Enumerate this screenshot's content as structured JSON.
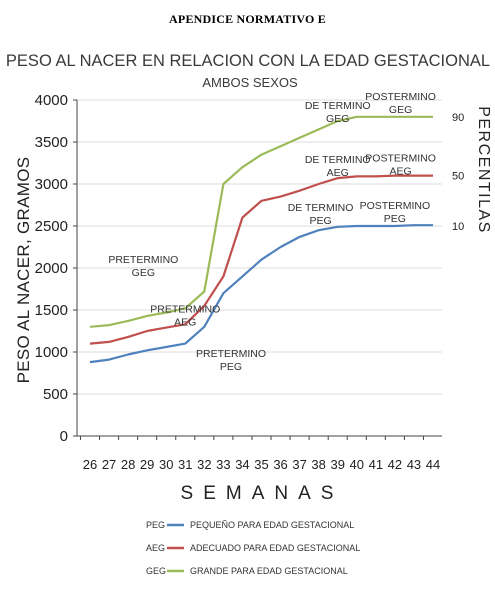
{
  "heading": "APENDICE NORMATIVO E",
  "chart_data": {
    "type": "line",
    "title": "PESO AL NACER EN RELACION CON LA EDAD GESTACIONAL",
    "subtitle": "AMBOS SEXOS",
    "xlabel": "SEMANAS",
    "ylabel": "PESO AL NACER, GRAMOS",
    "y2label": "PERCENTILAS",
    "x": [
      26,
      27,
      28,
      29,
      30,
      31,
      32,
      33,
      34,
      35,
      36,
      37,
      38,
      39,
      40,
      41,
      42,
      43,
      44
    ],
    "xticks": [
      "26",
      "27",
      "28",
      "29",
      "30",
      "31",
      "32",
      "33",
      "34",
      "35",
      "36",
      "37",
      "38",
      "39",
      "40",
      "41",
      "42",
      "43",
      "44"
    ],
    "ylim": [
      0,
      4000
    ],
    "yticks": [
      "0",
      "500",
      "1000",
      "1500",
      "2000",
      "2500",
      "3000",
      "3500",
      "4000"
    ],
    "grid": true,
    "series": [
      {
        "code": "GEG",
        "name": "GRANDE PARA EDAD GESTACIONAL",
        "color": "#9bbb59",
        "values": [
          1300,
          1320,
          1370,
          1430,
          1470,
          1520,
          1720,
          3000,
          3200,
          3350,
          3450,
          3550,
          3650,
          3750,
          3800,
          3800,
          3800,
          3800,
          3800
        ]
      },
      {
        "code": "AEG",
        "name": "ADECUADO PARA EDAD GESTACIONAL",
        "color": "#c0504d",
        "values": [
          1100,
          1120,
          1180,
          1250,
          1290,
          1330,
          1550,
          1900,
          2600,
          2800,
          2850,
          2920,
          3000,
          3070,
          3090,
          3090,
          3100,
          3100,
          3100
        ]
      },
      {
        "code": "PEG",
        "name": "PEQUEÑO PARA EDAD GESTACIONAL",
        "color": "#4f81bd",
        "values": [
          880,
          910,
          970,
          1020,
          1060,
          1100,
          1300,
          1700,
          1900,
          2100,
          2250,
          2370,
          2450,
          2490,
          2500,
          2500,
          2500,
          2510,
          2510
        ]
      }
    ],
    "percentiles": [
      {
        "label": "90",
        "y": 3800
      },
      {
        "label": "50",
        "y": 3100
      },
      {
        "label": "10",
        "y": 2500
      }
    ],
    "annotations": [
      {
        "lines": [
          "POSTERMINO",
          "GEG"
        ],
        "x": 42.3,
        "y": 4000,
        "color": "#444"
      },
      {
        "lines": [
          "DE TERMINO",
          "GEG"
        ],
        "x": 39.0,
        "y": 3890,
        "color": "#444"
      },
      {
        "lines": [
          "DE TERMINO",
          "AEG"
        ],
        "x": 39.0,
        "y": 3250,
        "color": "#444"
      },
      {
        "lines": [
          "POSTERMINO",
          "AEG"
        ],
        "x": 42.3,
        "y": 3270,
        "color": "#444"
      },
      {
        "lines": [
          "DE TERMINO",
          "PEG"
        ],
        "x": 38.1,
        "y": 2680,
        "color": "#444"
      },
      {
        "lines": [
          "POSTERMINO",
          "PEG"
        ],
        "x": 42.0,
        "y": 2700,
        "color": "#444"
      },
      {
        "lines": [
          "PRETERMINO",
          "GEG"
        ],
        "x": 28.8,
        "y": 2060,
        "color": "#444"
      },
      {
        "lines": [
          "PRETERMINO",
          "AEG"
        ],
        "x": 31.0,
        "y": 1470,
        "color": "#444"
      },
      {
        "lines": [
          "PRETERMINO",
          "PEG"
        ],
        "x": 33.4,
        "y": 940,
        "color": "#444"
      }
    ]
  }
}
